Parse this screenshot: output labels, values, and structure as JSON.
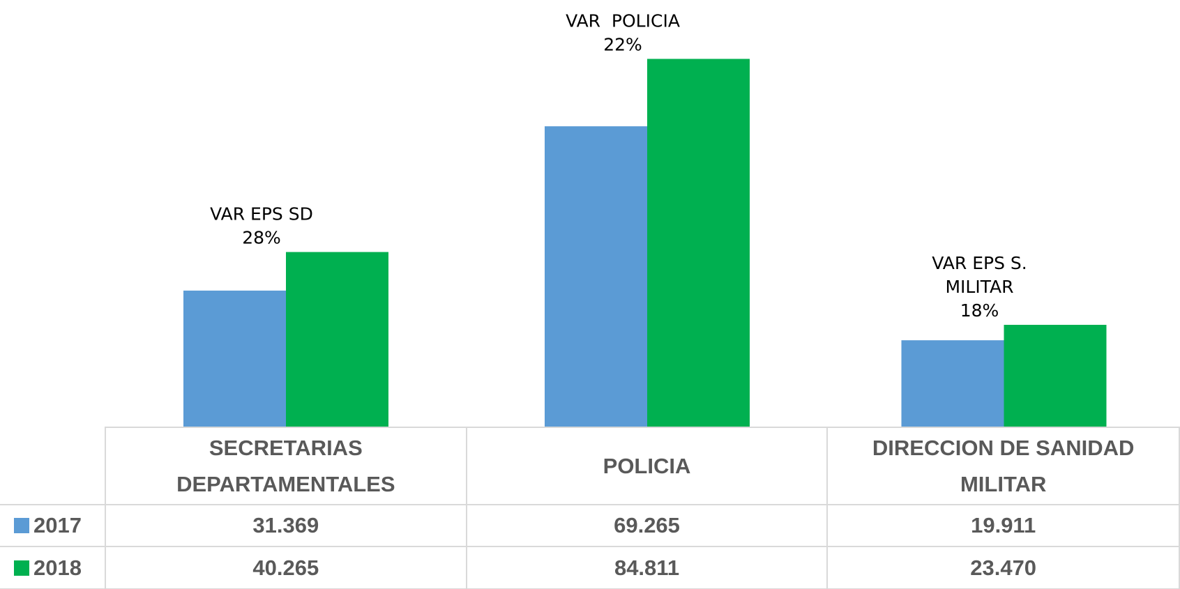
{
  "chart_data": {
    "type": "bar",
    "categories": [
      "SECRETARIAS DEPARTAMENTALES",
      "POLICIA",
      "DIRECCION DE SANIDAD MILITAR"
    ],
    "series": [
      {
        "name": "2017",
        "color": "#5b9bd5",
        "values": [
          31369,
          69265,
          19911
        ],
        "value_labels": [
          "31.369",
          "69.265",
          "19.911"
        ]
      },
      {
        "name": "2018",
        "color": "#00b050",
        "values": [
          40265,
          84811,
          23470
        ],
        "value_labels": [
          "40.265",
          "84.811",
          "23.470"
        ]
      }
    ],
    "annotations": [
      {
        "lines": [
          "VAR EPS SD",
          "28%"
        ]
      },
      {
        "lines": [
          "VAR  POLICIA",
          "22%"
        ]
      },
      {
        "lines": [
          "VAR EPS S.",
          "MILITAR",
          "18%"
        ]
      }
    ]
  }
}
